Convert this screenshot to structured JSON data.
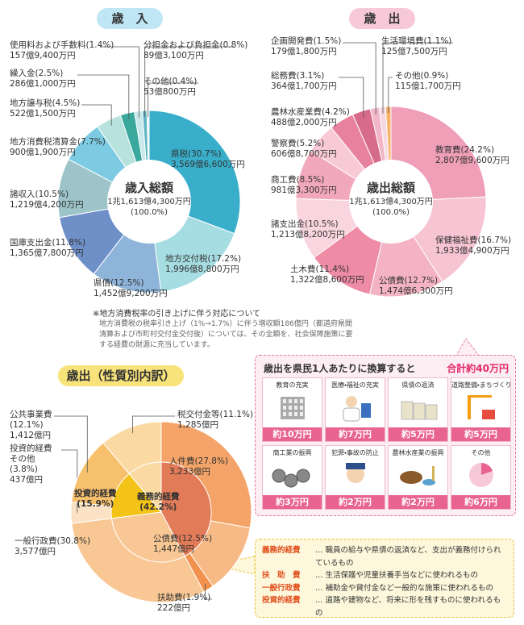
{
  "chart_data": [
    {
      "type": "pie",
      "title": "歳　入",
      "center_label": "歳入総額",
      "center_amount": "1兆1,613億4,300万円",
      "center_share": "(100.0%)",
      "categories": [
        "県税",
        "地方交付税",
        "県債",
        "国庫支出金",
        "諸収入",
        "地方消費税清算金",
        "地方譲与税",
        "繰入金",
        "使用料および手数料",
        "分担金および負担金",
        "その他"
      ],
      "values": [
        30.7,
        17.2,
        12.5,
        11.8,
        10.5,
        7.7,
        4.5,
        2.5,
        1.4,
        0.8,
        0.4
      ],
      "value_labels": [
        "(30.7%)",
        "(17.2%)",
        "(12.5%)",
        "(11.8%)",
        "(10.5%)",
        "(7.7%)",
        "(4.5%)",
        "(2.5%)",
        "(1.4%)",
        "(0.8%)",
        "(0.4%)"
      ],
      "amount_labels": [
        "3,569億6,600万円",
        "1,996億8,800万円",
        "1,452億9,200万円",
        "1,365億7,800万円",
        "1,219億4,200万円",
        "900億1,900万円",
        "522億1,500万円",
        "286億1,000万円",
        "157億9,400万円",
        "89億3,100万円",
        "53億800万円"
      ],
      "colors": [
        "#39aecb",
        "#a6dde2",
        "#8eb4da",
        "#6f8fc9",
        "#9cc4c9",
        "#7ccbe3",
        "#b7e2de",
        "#3aa89c",
        "#c9e8ec",
        "#5eb4c2",
        "#e6f4f7"
      ]
    },
    {
      "type": "pie",
      "title": "歳　出",
      "center_label": "歳出総額",
      "center_amount": "1兆1,613億4,300万円",
      "center_share": "(100.0%)",
      "categories": [
        "教育費",
        "保健福祉費",
        "公債費",
        "土木費",
        "諸支出金",
        "商工費",
        "警察費",
        "農林水産業費",
        "総務費",
        "企画開発費",
        "生活環境費",
        "その他"
      ],
      "values": [
        24.2,
        16.7,
        12.7,
        11.4,
        10.5,
        8.5,
        5.2,
        4.2,
        3.1,
        1.5,
        1.1,
        0.9
      ],
      "value_labels": [
        "(24.2%)",
        "(16.7%)",
        "(12.7%)",
        "(11.4%)",
        "(10.5%)",
        "(8.5%)",
        "(5.2%)",
        "(4.2%)",
        "(3.1%)",
        "(1.5%)",
        "(1.1%)",
        "(0.9%)"
      ],
      "amount_labels": [
        "2,807億9,600万円",
        "1,933億4,900万円",
        "1,474億6,300万円",
        "1,322億8,600万円",
        "1,213億8,200万円",
        "981億3,300万円",
        "606億8,700万円",
        "488億2,000万円",
        "364億1,700万円",
        "179億1,800万円",
        "125億7,500万円",
        "115億1,700万円"
      ],
      "colors": [
        "#f09fb8",
        "#f6c4d3",
        "#f4b3c4",
        "#ee8ba5",
        "#f9d5df",
        "#f2a8bc",
        "#f8c9d6",
        "#e8819e",
        "#d76b8b",
        "#f1b7c8",
        "#f7d7e1",
        "#f8b26a"
      ]
    },
    {
      "type": "pie",
      "title": "歳出（性質別内訳）",
      "categories": [
        "人件費",
        "公債費",
        "扶助費",
        "一般行政費",
        "投資的経費その他",
        "公共事業費",
        "税交付金等"
      ],
      "values": [
        27.8,
        12.5,
        1.9,
        30.8,
        3.8,
        12.1,
        11.1
      ],
      "value_labels": [
        "(27.8%)",
        "(12.5%)",
        "(1.9%)",
        "(30.8%)",
        "(3.8%)",
        "(12.1%)",
        "(11.1%)"
      ],
      "amount_labels": [
        "3,233億円",
        "1,447億円",
        "222億円",
        "3,577億円",
        "437億円",
        "1,412億円",
        "1,285億円"
      ],
      "colors": [
        "#f4a468",
        "#f7b985",
        "#f2904e",
        "#f8c793",
        "#fbe2c4",
        "#f7c06c",
        "#fbd9a3"
      ],
      "inner": {
        "categories": [
          "義務的経費",
          null,
          "投資的経費",
          null
        ],
        "values": [
          42.2,
          30.8,
          15.9,
          11.1
        ],
        "value_labels": [
          "(42.2%)",
          null,
          "(15.9%)",
          null
        ],
        "colors": [
          "#e27b58",
          "#f8c793",
          "#f3c318",
          "#fbd9a3"
        ]
      }
    }
  ],
  "note": {
    "title": "※地方消費税率の引き上げに伴う対応について",
    "text": "地方消費税の税率引き上げ（1%→1.7%）に伴う増収額186億円（都道府県間清算および市町村交付金交付後）については、その全額を、社会保障施策に要する経費の財源に充当しています。"
  },
  "per_capita": {
    "title": "歳出を県民1人あたりに換算すると",
    "total": "合計約40万円",
    "items": [
      {
        "label": "教育の充実",
        "amount": "約10万円"
      },
      {
        "label": "医療・福祉の充実",
        "amount": "約7万円"
      },
      {
        "label": "県債の返済",
        "amount": "約5万円"
      },
      {
        "label": "道路整備・まちづくり",
        "amount": "約5万円"
      },
      {
        "label": "商工業の振興",
        "amount": "約3万円"
      },
      {
        "label": "犯罪・事故の防止",
        "amount": "約2万円"
      },
      {
        "label": "農林水産業の振興",
        "amount": "約2万円"
      },
      {
        "label": "その他",
        "amount": "約6万円"
      }
    ]
  },
  "glossary": [
    {
      "term": "義務的経費",
      "desc": "… 職員の給与や県債の返済など、支出が義務付けられているもの"
    },
    {
      "term": "扶　助　費",
      "desc": "… 生活保護や児童扶養手当などに使われるもの"
    },
    {
      "term": "一般行政費",
      "desc": "… 補助金や貸付金など一般的な施策に使われるもの"
    },
    {
      "term": "投資的経費",
      "desc": "… 道路や建物など、将来に形を残すものに使われるもの"
    }
  ]
}
